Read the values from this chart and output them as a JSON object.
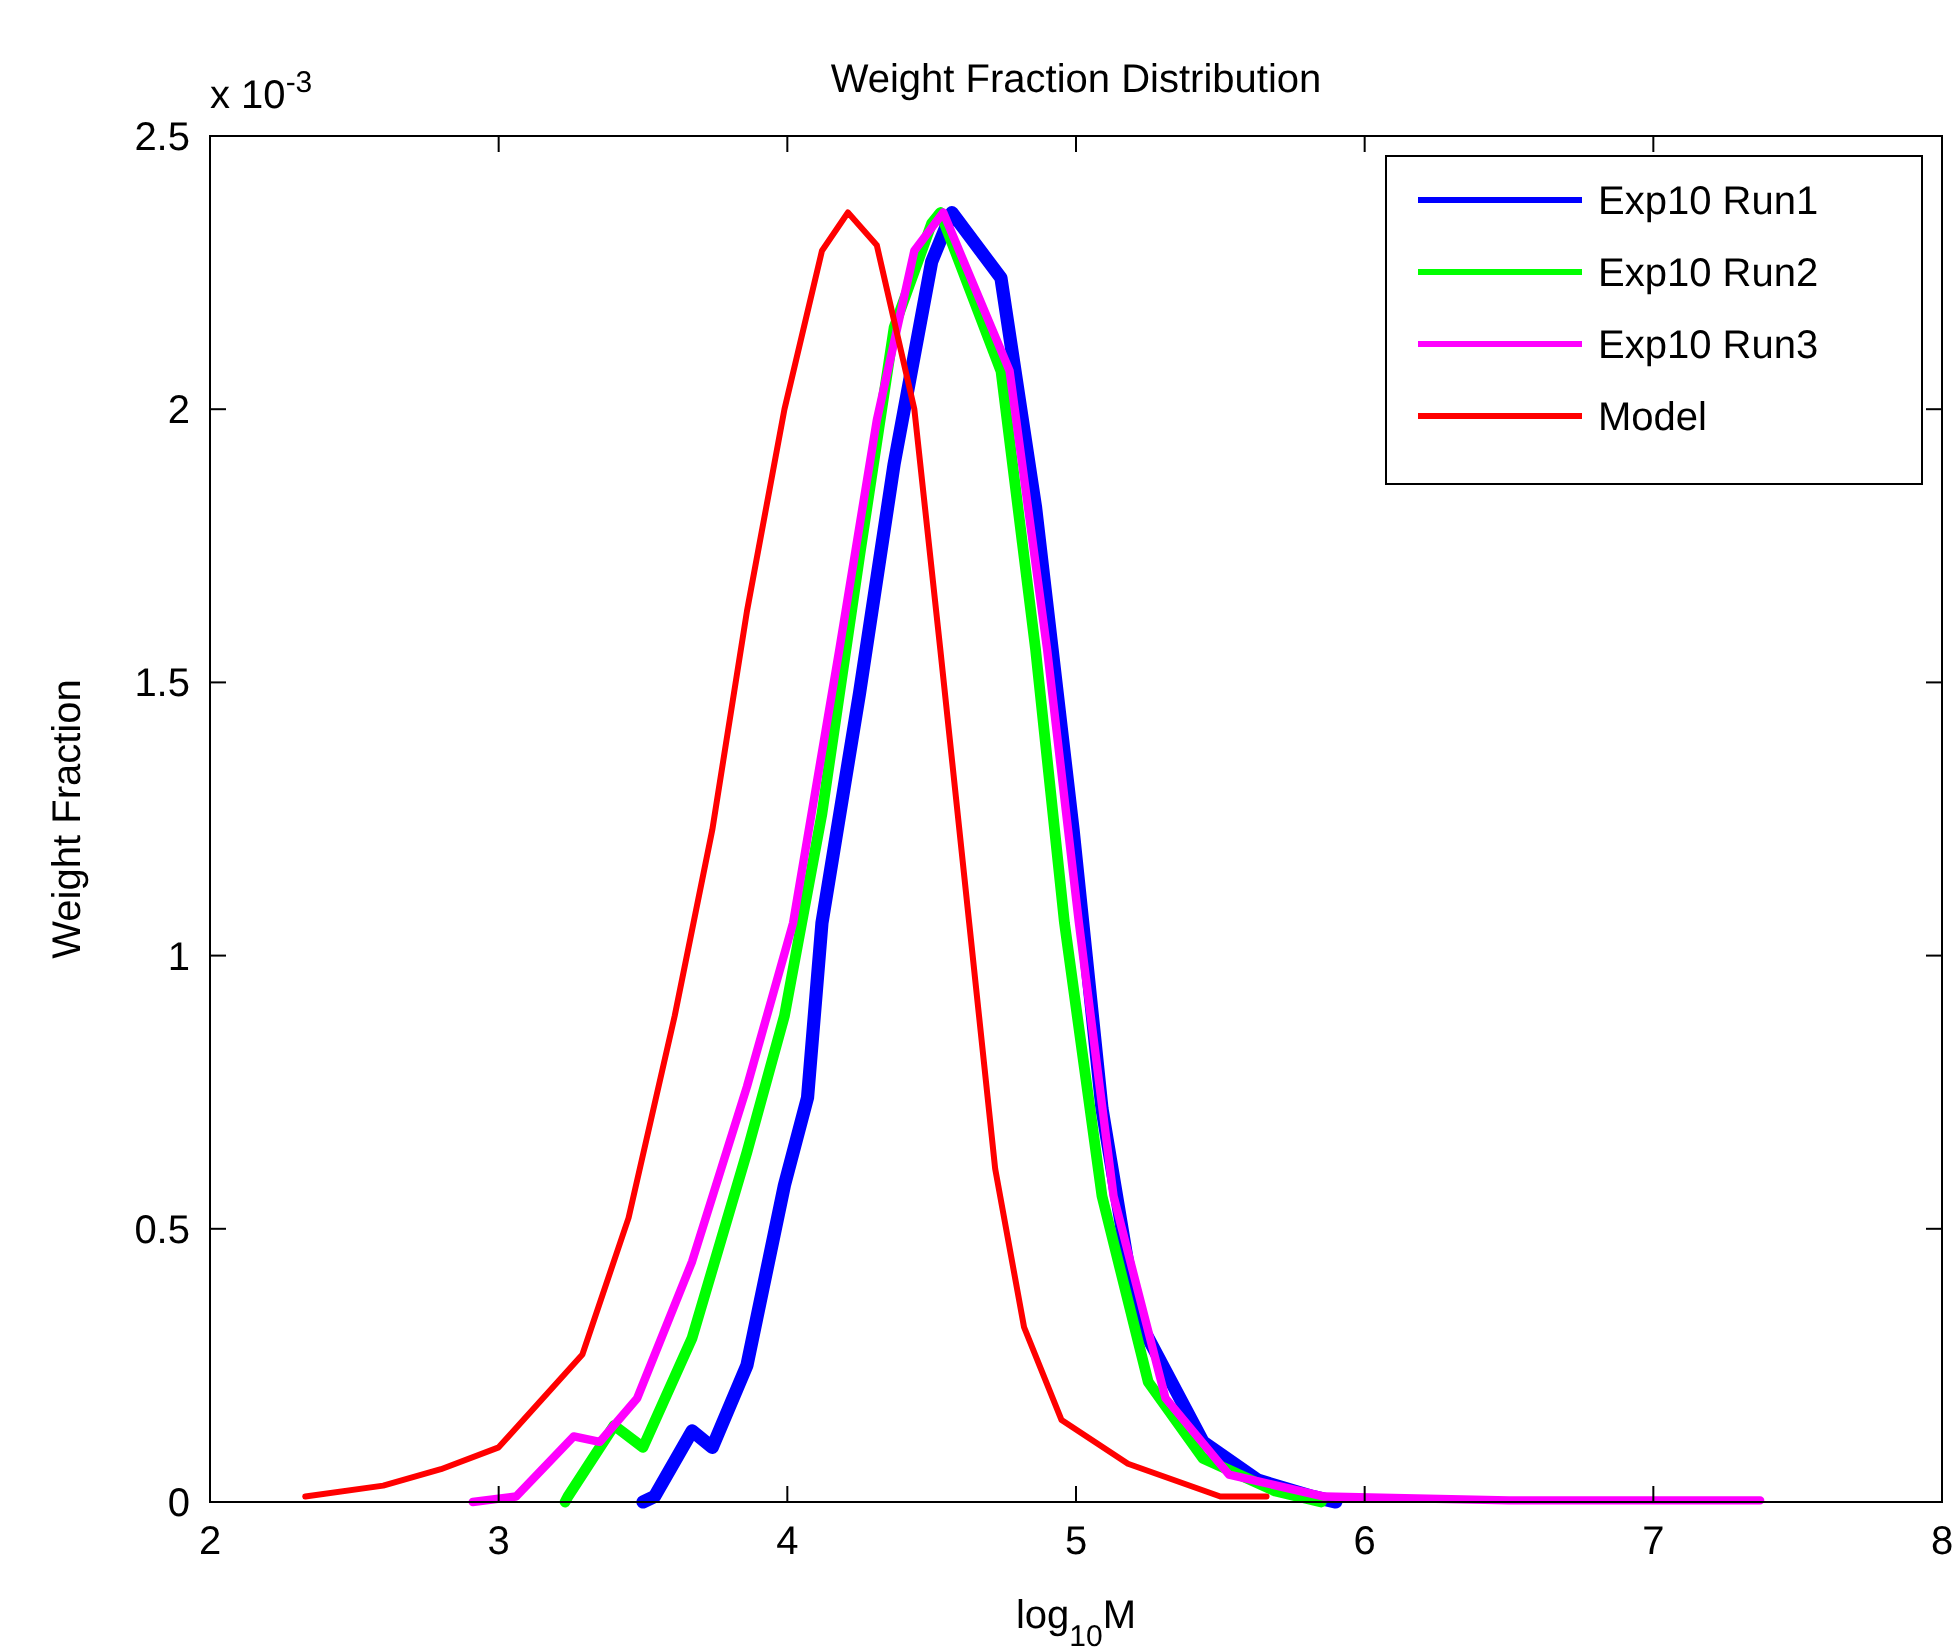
{
  "chart_data": {
    "type": "line",
    "title": "Weight Fraction Distribution",
    "xlabel": "log$_{10}$M",
    "ylabel": "Weight Fraction",
    "annotations": [
      "x 10$^{-3}$"
    ],
    "xlim": [
      2,
      8
    ],
    "xticks": [
      2,
      3,
      4,
      5,
      6,
      7,
      8
    ],
    "ylim": [
      0,
      2.5
    ],
    "yticks": [
      0,
      0.5,
      1,
      1.5,
      2,
      2.5
    ],
    "legend": "top right",
    "grid": false,
    "series": [
      {
        "name": "Exp10 Run1",
        "color": "#0000ff",
        "x": [
          3.5,
          3.54,
          3.67,
          3.74,
          3.86,
          3.99,
          4.07,
          4.12,
          4.25,
          4.37,
          4.5,
          4.57,
          4.74,
          4.86,
          4.99,
          5.09,
          5.21,
          5.44,
          5.63,
          5.82,
          5.9
        ],
        "values": [
          0,
          0.01,
          0.13,
          0.1,
          0.25,
          0.58,
          0.74,
          1.06,
          1.48,
          1.9,
          2.27,
          2.36,
          2.24,
          1.82,
          1.23,
          0.72,
          0.34,
          0.11,
          0.04,
          0.01,
          0
        ]
      },
      {
        "name": "Exp10 Run2",
        "color": "#00ff00",
        "x": [
          3.23,
          3.24,
          3.4,
          3.5,
          3.67,
          3.86,
          3.99,
          4.12,
          4.25,
          4.37,
          4.5,
          4.53,
          4.74,
          4.86,
          4.96,
          5.09,
          5.25,
          5.44,
          5.69,
          5.85
        ],
        "values": [
          0,
          0.01,
          0.14,
          0.1,
          0.3,
          0.64,
          0.89,
          1.26,
          1.73,
          2.15,
          2.34,
          2.36,
          2.07,
          1.56,
          1.06,
          0.56,
          0.22,
          0.08,
          0.02,
          0
        ]
      },
      {
        "name": "Exp10 Run3",
        "color": "#ff00ff",
        "x": [
          2.91,
          3.06,
          3.26,
          3.35,
          3.48,
          3.67,
          3.86,
          4.02,
          4.18,
          4.31,
          4.44,
          4.54,
          4.77,
          4.9,
          5.01,
          5.13,
          5.31,
          5.53,
          5.86,
          6.5,
          7.37
        ],
        "values": [
          0,
          0.01,
          0.12,
          0.11,
          0.19,
          0.44,
          0.76,
          1.06,
          1.56,
          1.98,
          2.29,
          2.36,
          2.07,
          1.56,
          1.06,
          0.56,
          0.19,
          0.05,
          0.01,
          0.003,
          0.003
        ]
      },
      {
        "name": "Model",
        "color": "#ff0000",
        "x": [
          2.33,
          2.6,
          2.8,
          3,
          3.29,
          3.45,
          3.61,
          3.74,
          3.86,
          3.99,
          4.12,
          4.21,
          4.31,
          4.44,
          4.53,
          4.63,
          4.72,
          4.82,
          4.95,
          5.18,
          5.5,
          5.66
        ],
        "values": [
          0.01,
          0.03,
          0.06,
          0.1,
          0.27,
          0.52,
          0.89,
          1.23,
          1.63,
          2,
          2.29,
          2.36,
          2.3,
          2,
          1.56,
          1.06,
          0.61,
          0.32,
          0.15,
          0.07,
          0.01,
          0.01
        ]
      }
    ]
  }
}
